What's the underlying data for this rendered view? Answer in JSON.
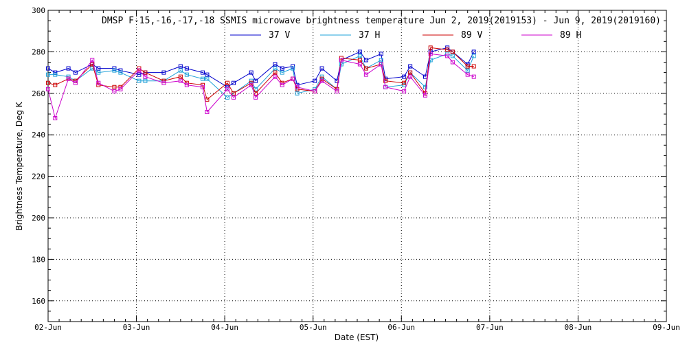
{
  "chart_data": {
    "type": "line",
    "title": "DMSP F-15,-16,-17,-18 SSMIS microwave brightness temperature Jun  2, 2019(2019153) - Jun  9, 2019(2019160)",
    "xlabel": "Date (EST)",
    "ylabel": "Brightness Temperature, Deg K",
    "xlim": [
      0,
      7
    ],
    "ylim": [
      150,
      300
    ],
    "x_ticks": [
      {
        "x": 0,
        "label": "02-Jun"
      },
      {
        "x": 1,
        "label": "03-Jun"
      },
      {
        "x": 2,
        "label": "04-Jun"
      },
      {
        "x": 3,
        "label": "05-Jun"
      },
      {
        "x": 4,
        "label": "06-Jun"
      },
      {
        "x": 5,
        "label": "07-Jun"
      },
      {
        "x": 6,
        "label": "08-Jun"
      },
      {
        "x": 7,
        "label": "09-Jun"
      }
    ],
    "y_ticks": [
      160,
      180,
      200,
      220,
      240,
      260,
      280,
      300
    ],
    "grid": true,
    "legend_position": "top",
    "x_axis_note": "x values are fractional days elapsed since 02-Jun 00:00 EST",
    "x": [
      0,
      0.08,
      0.23,
      0.31,
      0.5,
      0.57,
      0.75,
      0.82,
      1.03,
      1.1,
      1.31,
      1.5,
      1.57,
      1.75,
      1.8,
      2.03,
      2.1,
      2.3,
      2.35,
      2.57,
      2.65,
      2.77,
      2.82,
      3.02,
      3.1,
      3.27,
      3.32,
      3.53,
      3.6,
      3.77,
      3.82,
      4.03,
      4.1,
      4.27,
      4.33,
      4.52,
      4.58,
      4.75,
      4.82
    ],
    "series": [
      {
        "name": "37 V",
        "color": "#0000cc",
        "values": [
          272,
          270,
          272,
          270,
          274,
          272,
          272,
          271,
          269,
          270,
          270,
          273,
          272,
          270,
          269,
          263,
          265,
          270,
          266,
          274,
          272,
          273,
          264,
          266,
          272,
          266,
          276,
          280,
          276,
          279,
          267,
          268,
          273,
          268,
          280,
          282,
          280,
          274,
          280
        ]
      },
      {
        "name": "37 H",
        "color": "#1ea0d8",
        "values": [
          269,
          269,
          268,
          266,
          272,
          270,
          271,
          270,
          266,
          266,
          266,
          271,
          269,
          267,
          267,
          258,
          260,
          266,
          262,
          272,
          270,
          272,
          260,
          262,
          268,
          262,
          274,
          278,
          272,
          276,
          263,
          264,
          270,
          263,
          276,
          279,
          278,
          271,
          278
        ]
      },
      {
        "name": "89 V",
        "color": "#cc0000",
        "values": [
          265,
          264,
          267,
          266,
          274,
          264,
          263,
          263,
          272,
          270,
          266,
          268,
          265,
          264,
          257,
          265,
          260,
          265,
          260,
          270,
          265,
          267,
          262,
          261,
          267,
          262,
          277,
          276,
          272,
          274,
          266,
          265,
          270,
          260,
          282,
          281,
          280,
          273,
          273
        ]
      },
      {
        "name": "89 H",
        "color": "#cc00cc",
        "values": [
          262,
          248,
          267,
          265,
          276,
          265,
          261,
          262,
          271,
          268,
          265,
          266,
          264,
          263,
          251,
          262,
          258,
          264,
          258,
          268,
          264,
          267,
          263,
          261,
          266,
          261,
          276,
          274,
          269,
          274,
          263,
          261,
          268,
          259,
          279,
          278,
          275,
          269,
          268
        ]
      }
    ]
  }
}
